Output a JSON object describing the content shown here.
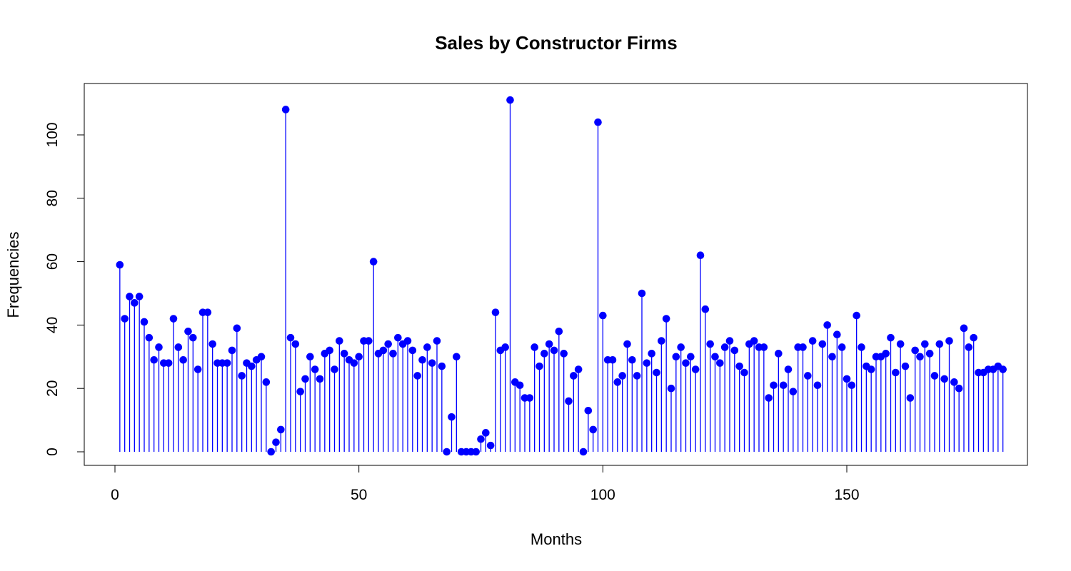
{
  "chart_data": {
    "type": "scatter",
    "style": "stem",
    "title": "Sales by Constructor Firms",
    "xlabel": "Months",
    "ylabel": "Frequencies",
    "xlim": [
      1,
      180
    ],
    "ylim": [
      0,
      111
    ],
    "x_ticks": [
      "0",
      "50",
      "100",
      "150"
    ],
    "y_ticks": [
      "0",
      "20",
      "40",
      "60",
      "80",
      "100"
    ],
    "grid": false,
    "legend": "none",
    "series_color": "#0000ff",
    "series": [
      {
        "values": [
          59,
          42,
          49,
          47,
          49,
          41,
          36,
          29,
          33,
          28,
          28,
          42,
          33,
          29,
          38,
          36,
          26,
          44,
          44,
          34,
          28,
          28,
          28,
          32,
          39,
          24,
          28,
          27,
          29,
          30,
          22,
          0,
          3,
          7,
          108,
          36,
          34,
          19,
          23,
          30,
          26,
          23,
          31,
          32,
          26,
          35,
          31,
          29,
          28,
          30,
          35,
          35,
          60,
          31,
          32,
          34,
          31,
          36,
          34,
          35,
          32,
          24,
          29,
          33,
          28,
          35,
          27,
          0,
          11,
          30,
          0,
          0,
          0,
          0,
          4,
          6,
          2,
          44,
          32,
          33,
          111,
          22,
          21,
          17,
          17,
          33,
          27,
          31,
          34,
          32,
          38,
          31,
          16,
          24,
          26,
          0,
          13,
          7,
          104,
          43,
          29,
          29,
          22,
          24,
          34,
          29,
          24,
          50,
          28,
          31,
          25,
          35,
          42,
          20,
          30,
          33,
          28,
          30,
          26,
          62,
          45,
          34,
          30,
          28,
          33,
          35,
          32,
          27,
          25,
          34,
          35,
          33,
          33,
          17,
          21,
          31,
          21,
          26,
          19,
          33,
          33,
          24,
          35,
          21,
          34,
          40,
          30,
          37,
          33,
          23,
          21,
          43,
          33,
          27,
          26,
          30,
          30,
          31,
          36,
          25,
          34,
          27,
          17,
          32,
          30,
          34,
          31,
          24,
          34,
          23,
          35,
          22,
          20,
          39,
          33,
          36,
          25,
          25,
          26,
          26,
          27,
          26
        ]
      }
    ]
  }
}
